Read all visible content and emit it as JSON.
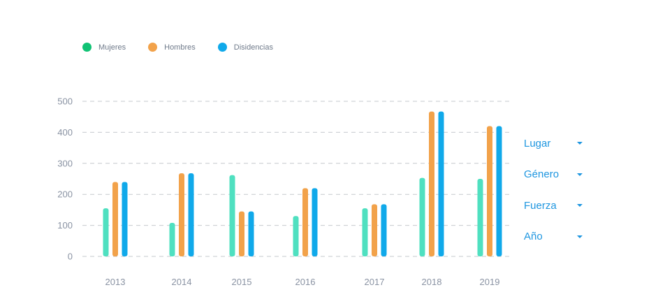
{
  "legend": [
    {
      "label": "Mujeres",
      "color": "#10c274"
    },
    {
      "label": "Hombres",
      "color": "#f2a24a"
    },
    {
      "label": "Disidencias",
      "color": "#10a9ea"
    }
  ],
  "filters": [
    {
      "label": "Lugar",
      "icon": "caret-down-icon"
    },
    {
      "label": "Género",
      "icon": "caret-down-icon"
    },
    {
      "label": "Fuerza",
      "icon": "caret-down-icon"
    },
    {
      "label": "Año",
      "icon": "caret-down-icon"
    }
  ],
  "chart_data": {
    "type": "bar",
    "categories": [
      "2013",
      "2014",
      "2015",
      "2016",
      "2017",
      "2018",
      "2019"
    ],
    "series": [
      {
        "name": "Mujeres",
        "color": "#4fe0c0",
        "values": [
          155,
          108,
          262,
          130,
          155,
          253,
          250
        ]
      },
      {
        "name": "Hombres",
        "color": "#f2a24a",
        "values": [
          240,
          268,
          145,
          220,
          168,
          467,
          420
        ]
      },
      {
        "name": "Disidencias",
        "color": "#10a9ea",
        "values": [
          240,
          268,
          145,
          220,
          168,
          467,
          420
        ]
      }
    ],
    "ylim": [
      0,
      500
    ],
    "yticks": [
      0,
      100,
      200,
      300,
      400,
      500
    ],
    "grid": true,
    "legend_position": "top-left"
  }
}
